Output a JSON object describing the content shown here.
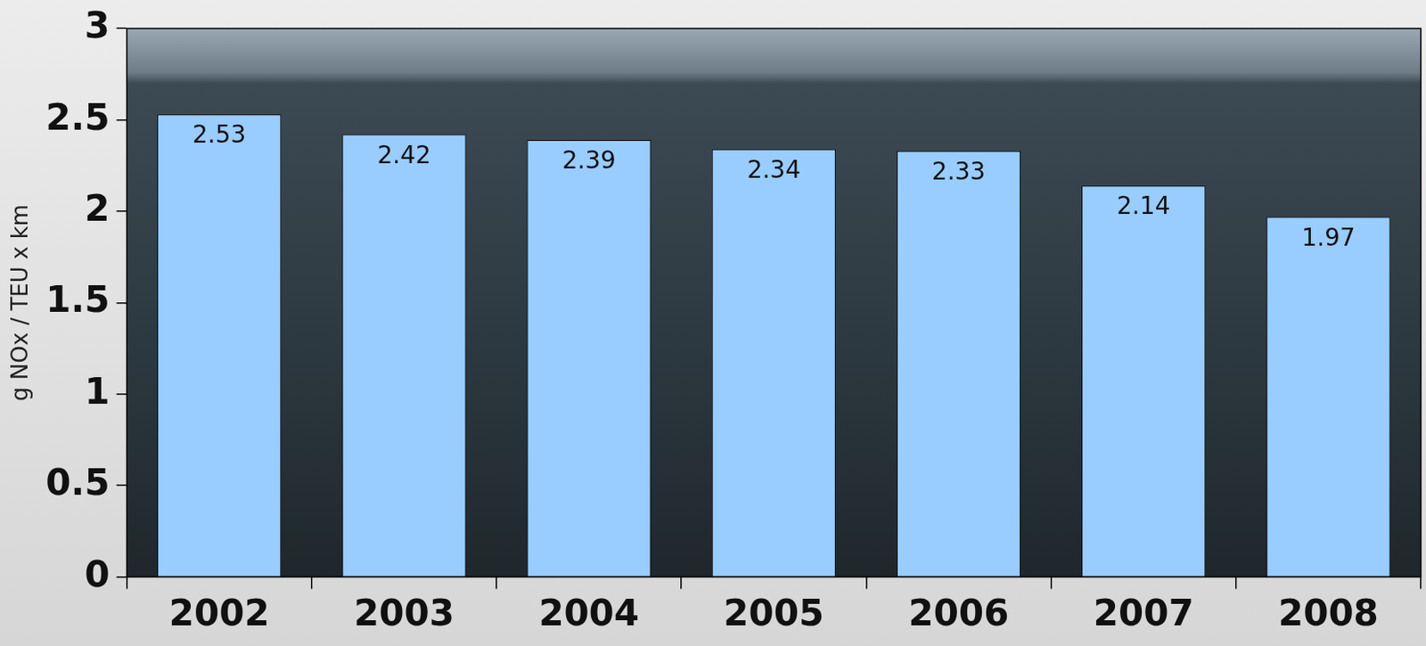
{
  "chart_data": {
    "type": "bar",
    "y_label": "g NOx / TEU x km",
    "categories": [
      "2002",
      "2003",
      "2004",
      "2005",
      "2006",
      "2007",
      "2008"
    ],
    "values": [
      2.53,
      2.42,
      2.39,
      2.34,
      2.33,
      2.14,
      1.97
    ],
    "color": "#99ccff",
    "ylim": [
      0,
      3
    ],
    "yticks": [
      0,
      0.5,
      1,
      1.5,
      2,
      2.5,
      3
    ],
    "grid": false,
    "data_labels": true
  }
}
